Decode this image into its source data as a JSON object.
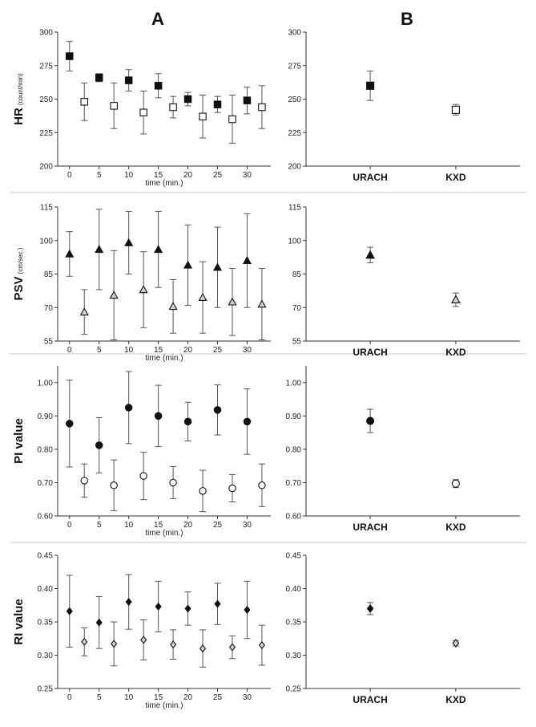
{
  "column_labels": [
    "A",
    "B"
  ],
  "chart_data": [
    {
      "id": "HR-A",
      "panel": "A",
      "type": "scatter",
      "error_bars": true,
      "ylabel": "HR",
      "yunit": "(count/min)",
      "xlabel": "time (min.)",
      "ylim": [
        200,
        300
      ],
      "yticks": [
        200,
        225,
        250,
        275,
        300
      ],
      "xlim": [
        -2,
        34
      ],
      "xticks": [
        0,
        5,
        10,
        15,
        20,
        25,
        30
      ],
      "series": [
        {
          "name": "URACH",
          "marker": "square",
          "fill": "filled",
          "x": [
            0,
            5,
            10,
            15,
            20,
            25,
            30
          ],
          "y": [
            282,
            266,
            264,
            260,
            250,
            246,
            249
          ],
          "err": [
            11,
            3,
            8,
            9,
            5,
            6,
            10
          ]
        },
        {
          "name": "KXD",
          "marker": "square",
          "fill": "open",
          "x": [
            2.5,
            7.5,
            12.5,
            17.5,
            22.5,
            27.5,
            32.5
          ],
          "y": [
            248,
            245,
            240,
            244,
            237,
            235,
            244
          ],
          "err": [
            14,
            17,
            16,
            8,
            16,
            18,
            16
          ]
        }
      ]
    },
    {
      "id": "HR-B",
      "panel": "B",
      "type": "scatter",
      "error_bars": true,
      "ylim": [
        200,
        300
      ],
      "yticks": [
        200,
        225,
        250,
        275,
        300
      ],
      "categories": [
        "URACH",
        "KXD"
      ],
      "points": [
        {
          "category": "URACH",
          "marker": "square",
          "fill": "filled",
          "y": 260,
          "err": 11
        },
        {
          "category": "KXD",
          "marker": "square",
          "fill": "open",
          "y": 242,
          "err": 4
        }
      ]
    },
    {
      "id": "PSV-A",
      "panel": "A",
      "type": "scatter",
      "error_bars": true,
      "ylabel": "PSV",
      "yunit": "(cm/sec.)",
      "xlabel": "time (min.)",
      "ylim": [
        55,
        115
      ],
      "yticks": [
        55,
        70,
        85,
        100,
        115
      ],
      "xlim": [
        -2,
        34
      ],
      "xticks": [
        0,
        5,
        10,
        15,
        20,
        25,
        30
      ],
      "series": [
        {
          "name": "URACH",
          "marker": "triangle",
          "fill": "filled",
          "x": [
            0,
            5,
            10,
            15,
            20,
            25,
            30
          ],
          "y": [
            94,
            96,
            99,
            96,
            89,
            88,
            91
          ],
          "err": [
            10,
            18,
            14,
            17,
            18,
            18,
            21
          ]
        },
        {
          "name": "KXD",
          "marker": "triangle",
          "fill": "open",
          "x": [
            2.5,
            7.5,
            12.5,
            17.5,
            22.5,
            27.5,
            32.5
          ],
          "y": [
            68,
            75.5,
            78,
            70.5,
            74.5,
            72.5,
            71.5
          ],
          "err": [
            10,
            20,
            17,
            12,
            16,
            15,
            16
          ]
        }
      ]
    },
    {
      "id": "PSV-B",
      "panel": "B",
      "type": "scatter",
      "error_bars": true,
      "ylim": [
        55,
        115
      ],
      "yticks": [
        55,
        70,
        85,
        100,
        115
      ],
      "categories": [
        "URACH",
        "KXD"
      ],
      "points": [
        {
          "category": "URACH",
          "marker": "triangle",
          "fill": "filled",
          "y": 93.5,
          "err": 3.5
        },
        {
          "category": "KXD",
          "marker": "triangle",
          "fill": "open",
          "y": 73.5,
          "err": 3
        }
      ]
    },
    {
      "id": "PI-A",
      "panel": "A",
      "type": "scatter",
      "error_bars": true,
      "ylabel": "PI value",
      "yunit": "",
      "xlabel": "time (min.)",
      "ylim": [
        0.6,
        1.05
      ],
      "yticks": [
        0.6,
        0.7,
        0.8,
        0.9,
        1.0
      ],
      "tick_decimals": 2,
      "xlim": [
        -2,
        34
      ],
      "xticks": [
        0,
        5,
        10,
        15,
        20,
        25,
        30
      ],
      "series": [
        {
          "name": "URACH",
          "marker": "circle",
          "fill": "filled",
          "x": [
            0,
            5,
            10,
            15,
            20,
            25,
            30
          ],
          "y": [
            0.877,
            0.812,
            0.925,
            0.9,
            0.883,
            0.918,
            0.883
          ],
          "err": [
            0.13,
            0.083,
            0.108,
            0.092,
            0.058,
            0.075,
            0.098
          ]
        },
        {
          "name": "KXD",
          "marker": "circle",
          "fill": "open",
          "x": [
            2.5,
            7.5,
            12.5,
            17.5,
            22.5,
            27.5,
            32.5
          ],
          "y": [
            0.706,
            0.692,
            0.72,
            0.7,
            0.675,
            0.683,
            0.692
          ],
          "err": [
            0.05,
            0.076,
            0.071,
            0.048,
            0.062,
            0.041,
            0.064
          ]
        }
      ]
    },
    {
      "id": "PI-B",
      "panel": "B",
      "type": "scatter",
      "error_bars": true,
      "ylim": [
        0.6,
        1.05
      ],
      "yticks": [
        0.6,
        0.7,
        0.8,
        0.9,
        1.0
      ],
      "tick_decimals": 2,
      "categories": [
        "URACH",
        "KXD"
      ],
      "points": [
        {
          "category": "URACH",
          "marker": "circle",
          "fill": "filled",
          "y": 0.885,
          "err": 0.035
        },
        {
          "category": "KXD",
          "marker": "circle",
          "fill": "open",
          "y": 0.697,
          "err": 0.012
        }
      ]
    },
    {
      "id": "RI-A",
      "panel": "A",
      "type": "scatter",
      "error_bars": true,
      "ylabel": "RI value",
      "yunit": "",
      "xlabel": "time (min.)",
      "ylim": [
        0.25,
        0.45
      ],
      "yticks": [
        0.25,
        0.3,
        0.35,
        0.4,
        0.45
      ],
      "tick_decimals": 2,
      "xlim": [
        -2,
        34
      ],
      "xticks": [
        0,
        5,
        10,
        15,
        20,
        25,
        30
      ],
      "series": [
        {
          "name": "URACH",
          "marker": "diamond",
          "fill": "filled",
          "x": [
            0,
            5,
            10,
            15,
            20,
            25,
            30
          ],
          "y": [
            0.366,
            0.349,
            0.38,
            0.373,
            0.37,
            0.377,
            0.368
          ],
          "err": [
            0.054,
            0.039,
            0.041,
            0.038,
            0.025,
            0.031,
            0.043
          ]
        },
        {
          "name": "KXD",
          "marker": "diamond",
          "fill": "open",
          "x": [
            2.5,
            7.5,
            12.5,
            17.5,
            22.5,
            27.5,
            32.5
          ],
          "y": [
            0.32,
            0.317,
            0.323,
            0.316,
            0.31,
            0.312,
            0.315
          ],
          "err": [
            0.021,
            0.033,
            0.03,
            0.022,
            0.028,
            0.017,
            0.03
          ]
        }
      ]
    },
    {
      "id": "RI-B",
      "panel": "B",
      "type": "scatter",
      "error_bars": true,
      "ylim": [
        0.25,
        0.45
      ],
      "yticks": [
        0.25,
        0.3,
        0.35,
        0.4,
        0.45
      ],
      "tick_decimals": 2,
      "categories": [
        "URACH",
        "KXD"
      ],
      "points": [
        {
          "category": "URACH",
          "marker": "diamond",
          "fill": "filled",
          "y": 0.37,
          "err": 0.009
        },
        {
          "category": "KXD",
          "marker": "diamond",
          "fill": "open",
          "y": 0.318,
          "err": 0.004
        }
      ]
    }
  ]
}
